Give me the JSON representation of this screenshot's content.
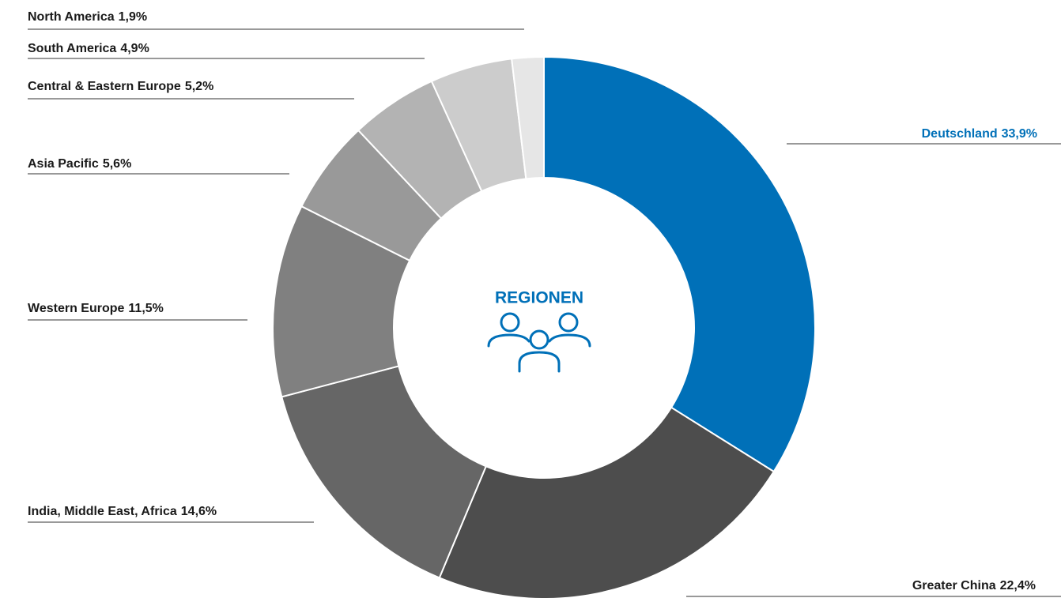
{
  "chart_data": {
    "type": "donut",
    "center_label": "REGIONEN",
    "categories": [
      "Deutschland",
      "Greater China",
      "India, Middle East, Africa",
      "Western Europe",
      "Asia Pacific",
      "Central & Eastern Europe",
      "South America",
      "North America"
    ],
    "values": [
      33.9,
      22.4,
      14.6,
      11.5,
      5.6,
      5.2,
      4.9,
      1.9
    ],
    "value_labels": [
      "33,9%",
      "22,4%",
      "14,6%",
      "11,5%",
      "5,6%",
      "5,2%",
      "4,9%",
      "1,9%"
    ],
    "colors": [
      "#0070b8",
      "#4d4d4d",
      "#666666",
      "#808080",
      "#999999",
      "#b3b3b3",
      "#cccccc",
      "#e6e6e6"
    ]
  }
}
